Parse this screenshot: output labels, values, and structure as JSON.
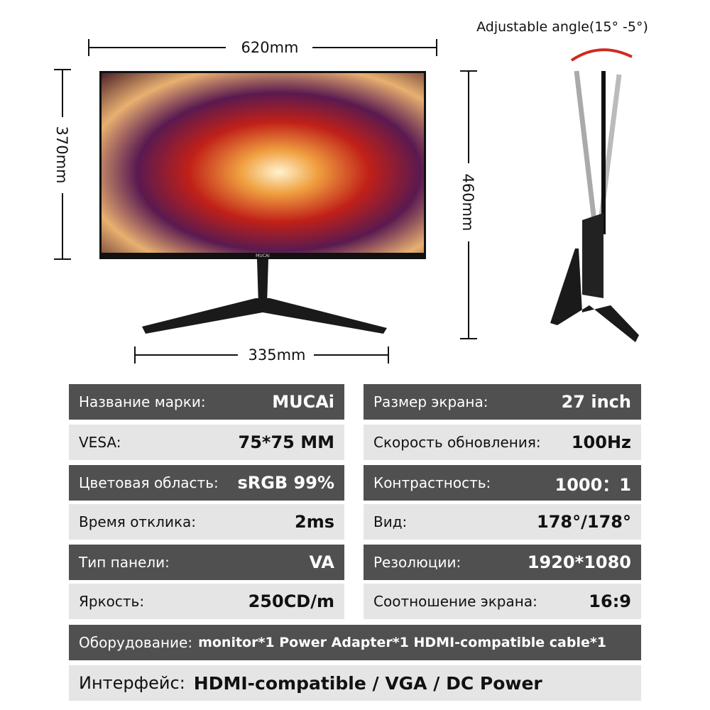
{
  "dimensions": {
    "width": "620mm",
    "height": "370mm",
    "total_height": "460mm",
    "base": "335mm",
    "angle": "Adjustable angle(15° -5°)"
  },
  "brand_logo": "MUCAI",
  "specs": {
    "left": [
      {
        "label": "Название марки:",
        "value": "MUCAi"
      },
      {
        "label": "VESA:",
        "value": "75*75 MM"
      },
      {
        "label": "Цветовая область:",
        "value": "sRGB 99%"
      },
      {
        "label": "Время отклика:",
        "value": "2ms"
      },
      {
        "label": "Тип панели:",
        "value": "VA"
      },
      {
        "label": "Яркость:",
        "value": "250CD/m"
      }
    ],
    "right": [
      {
        "label": "Размер экрана:",
        "value": "27 inch"
      },
      {
        "label": "Скорость обновления:",
        "value": "100Hz"
      },
      {
        "label": "Контрастность:",
        "value": "1000：1"
      },
      {
        "label": "Вид:",
        "value": "178°/178°"
      },
      {
        "label": "Резолюции:",
        "value": "1920*1080"
      },
      {
        "label": "Соотношение экрана:",
        "value": "16:9"
      }
    ]
  },
  "equipment": {
    "label": "Оборудование:",
    "value": "monitor*1 Power Adapter*1 HDMI-compatible cable*1"
  },
  "interface": {
    "label": "Интерфейс:",
    "value": "HDMI-compatible / VGA / DC Power"
  }
}
